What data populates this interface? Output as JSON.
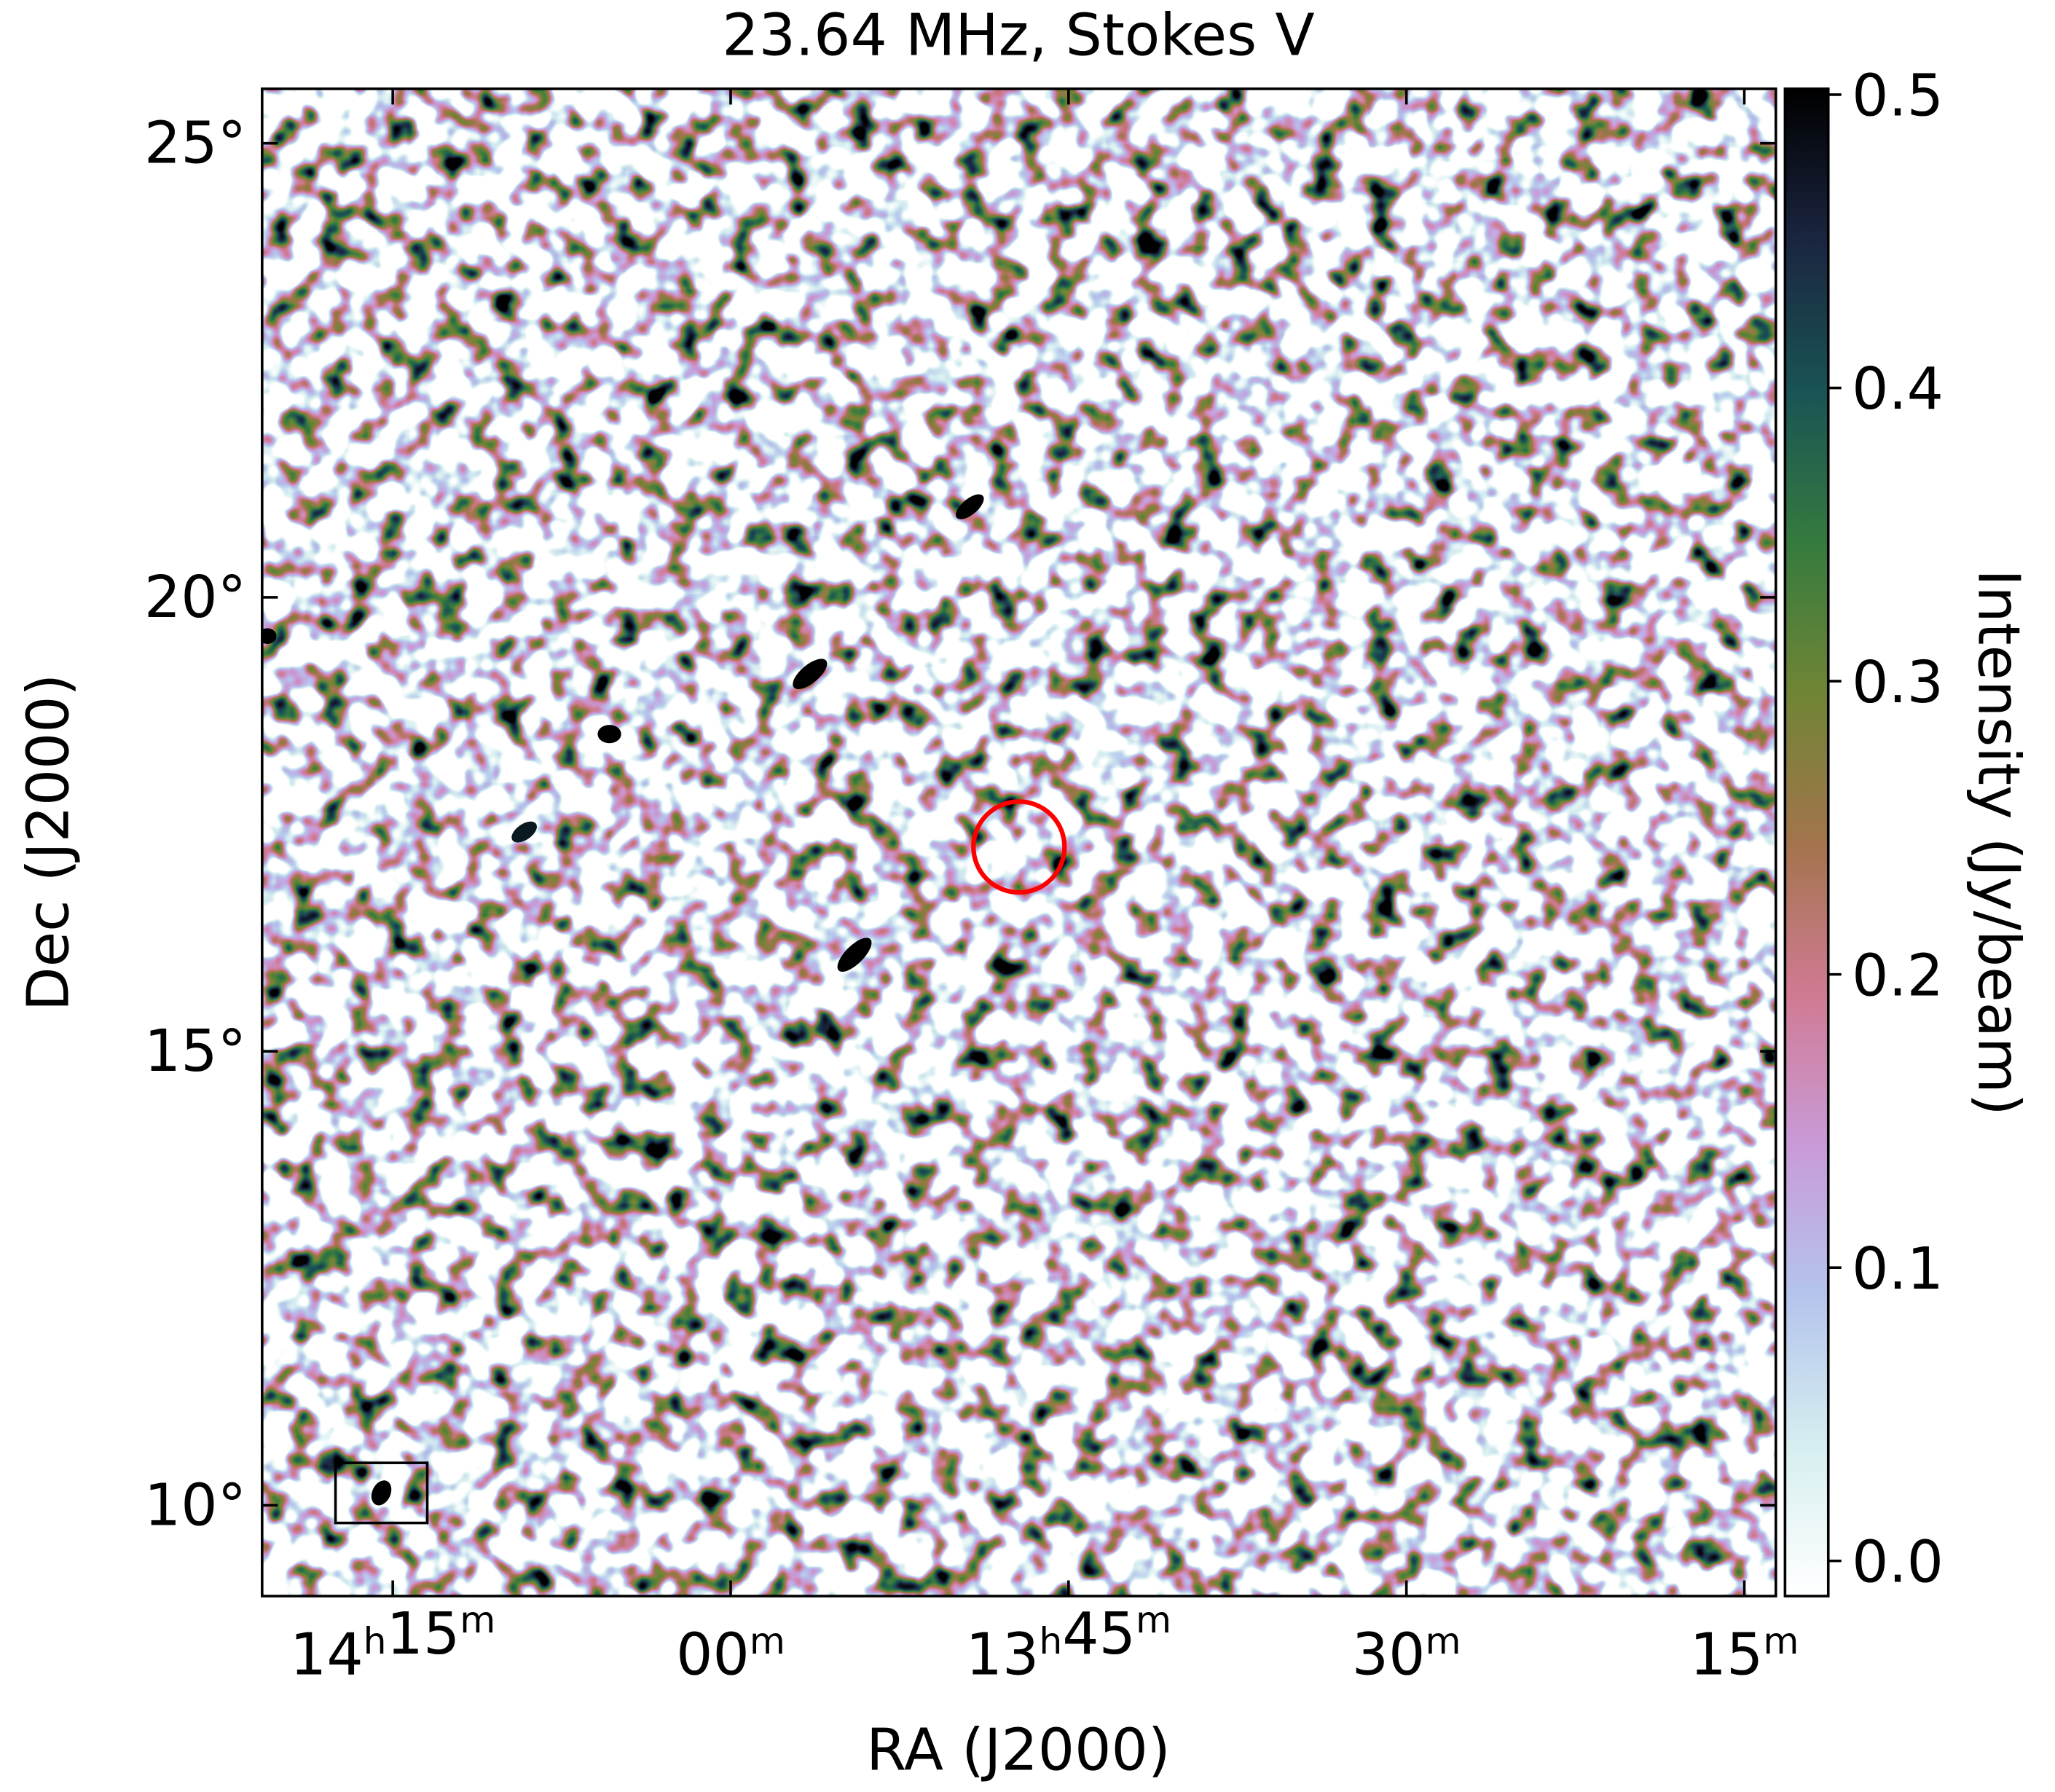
{
  "chart_data": {
    "type": "image",
    "title": "23.64 MHz, Stokes V",
    "xlabel": "RA (J2000)",
    "ylabel": "Dec (J2000)",
    "xlim": [
      215.2,
      198.4
    ],
    "ylim": [
      9.0,
      25.6
    ],
    "xticks": [
      {
        "value": 213.75,
        "label": "14h15m"
      },
      {
        "value": 210,
        "label": "00m"
      },
      {
        "value": 206.25,
        "label": "13h45m"
      },
      {
        "value": 202.5,
        "label": "30m"
      },
      {
        "value": 198.75,
        "label": "15m"
      }
    ],
    "yticks": [
      {
        "value": 10,
        "label": "10°"
      },
      {
        "value": 15,
        "label": "15°"
      },
      {
        "value": 20,
        "label": "20°"
      },
      {
        "value": 25,
        "label": "25°"
      }
    ],
    "colorbar": {
      "label": "Intensity (Jy/beam)",
      "lim": [
        -0.012,
        0.502
      ],
      "ticks": [
        {
          "value": 0,
          "label": "0.0"
        },
        0.1,
        0.2,
        0.3,
        0.4,
        {
          "value": 0.5,
          "label": "0.5"
        }
      ],
      "colormap": [
        "#ffffff",
        "#d6eef0",
        "#b4c4ec",
        "#c99ad8",
        "#d07a92",
        "#a3744c",
        "#6f8535",
        "#357a3f",
        "#1a5355",
        "#1a2540",
        "#000000"
      ]
    },
    "circle": {
      "ra": 206.8,
      "dec": 17.25,
      "radius": 0.5,
      "color": "#ff0000"
    }
  }
}
